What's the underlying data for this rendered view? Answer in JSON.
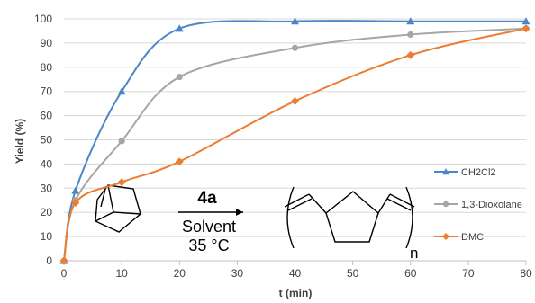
{
  "chart_data": {
    "type": "line",
    "xlabel": "t (min)",
    "ylabel": "Yield (%)",
    "xlim": [
      0,
      80
    ],
    "ylim": [
      0,
      100
    ],
    "x_ticks": [
      0,
      10,
      20,
      30,
      40,
      50,
      60,
      70,
      80
    ],
    "y_ticks": [
      0,
      10,
      20,
      30,
      40,
      50,
      60,
      70,
      80,
      90,
      100
    ],
    "grid": "horizontal",
    "legend_position": "right",
    "series": [
      {
        "name": "CH2Cl2",
        "color": "#4a86c8",
        "marker": "triangle",
        "x": [
          0,
          2,
          10,
          20,
          40,
          60,
          80
        ],
        "y": [
          0,
          29,
          70,
          96,
          99,
          99,
          99
        ]
      },
      {
        "name": "1,3-Dioxolane",
        "color": "#a6a6a6",
        "marker": "circle",
        "x": [
          0,
          2,
          10,
          20,
          40,
          60,
          80
        ],
        "y": [
          0,
          25,
          49.5,
          76,
          88,
          93.5,
          96
        ]
      },
      {
        "name": "DMC",
        "color": "#ed7d31",
        "marker": "diamond",
        "x": [
          0,
          2,
          10,
          20,
          40,
          60,
          80
        ],
        "y": [
          0,
          24,
          32.5,
          41,
          66,
          85,
          96
        ]
      }
    ],
    "scheme": {
      "reagent": "4a",
      "solvent": "Solvent",
      "temperature": "35 °C",
      "subscript": "n"
    }
  }
}
